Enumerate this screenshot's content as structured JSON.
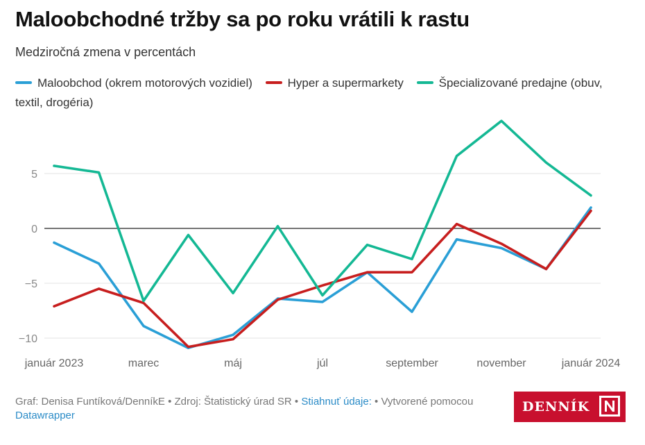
{
  "title": "Maloobchodné tržby sa po roku vrátili k rastu",
  "subtitle": "Medziročná zmena v percentách",
  "chart_data": {
    "type": "line",
    "x": [
      "január 2023",
      "február 2023",
      "marec",
      "apríl",
      "máj",
      "jún",
      "júl",
      "august",
      "september",
      "október",
      "november",
      "december",
      "január 2024"
    ],
    "x_tick_labels": [
      "január 2023",
      "marec",
      "máj",
      "júl",
      "september",
      "november",
      "január 2024"
    ],
    "series": [
      {
        "name": "Maloobchod (okrem motorových vozidiel)",
        "color": "#2a9fd6",
        "values": [
          -1.3,
          -3.2,
          -8.9,
          -10.9,
          -9.7,
          -6.4,
          -6.7,
          -4.0,
          -7.6,
          -1.0,
          -1.8,
          -3.7,
          1.9
        ]
      },
      {
        "name": "Hyper a supermarkety",
        "color": "#c71e1e",
        "values": [
          -7.1,
          -5.5,
          -6.8,
          -10.8,
          -10.1,
          -6.5,
          -5.2,
          -4.0,
          -4.0,
          0.4,
          -1.4,
          -3.7,
          1.6
        ]
      },
      {
        "name": "Špecializované predajne (obuv, textil, drogéria)",
        "color": "#14b894",
        "values": [
          5.7,
          5.1,
          -6.6,
          -0.6,
          -5.9,
          0.2,
          -6.1,
          -1.5,
          -2.8,
          6.6,
          9.8,
          6.0,
          3.0
        ]
      }
    ],
    "y_ticks": [
      5,
      0,
      -5,
      -10
    ],
    "y_tick_labels": [
      "5",
      "0",
      "−5",
      "−10"
    ],
    "ylim": [
      -11,
      10
    ],
    "grid": true,
    "legend_position": "top"
  },
  "footer": {
    "prefix": "Graf: Denisa Funtíková/DenníkE • Zdroj: Štatistický úrad SR • ",
    "download_link": "Stiahnuť údaje:",
    "middle": " • Vytvorené pomocou ",
    "tool_link": "Datawrapper"
  },
  "logo": {
    "text": "DENNÍK",
    "mark": "N"
  }
}
